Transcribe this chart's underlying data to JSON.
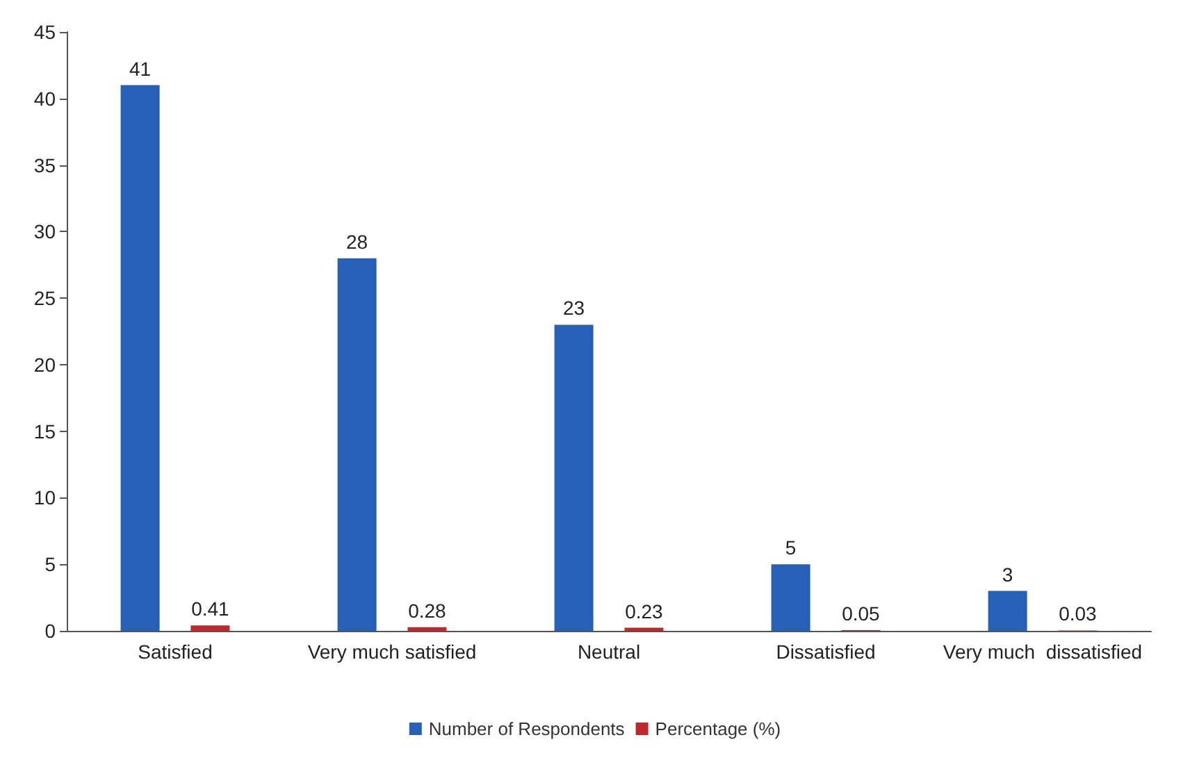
{
  "chart_data": {
    "type": "bar",
    "categories": [
      "Satisfied",
      "Very much satisfied",
      "Neutral",
      "Dissatisfied",
      "Very much  dissatisfied"
    ],
    "series": [
      {
        "name": "Number of Respondents",
        "color": "#2660b8",
        "values": [
          41,
          28,
          23,
          5,
          3
        ]
      },
      {
        "name": "Percentage (%)",
        "color": "#c0282d",
        "values": [
          0.41,
          0.28,
          0.23,
          0.05,
          0.03
        ]
      }
    ],
    "ylim": [
      0,
      45
    ],
    "yticks": [
      0,
      5,
      10,
      15,
      20,
      25,
      30,
      35,
      40,
      45
    ],
    "grid": false,
    "legend": "bottom",
    "data_labels": true
  }
}
